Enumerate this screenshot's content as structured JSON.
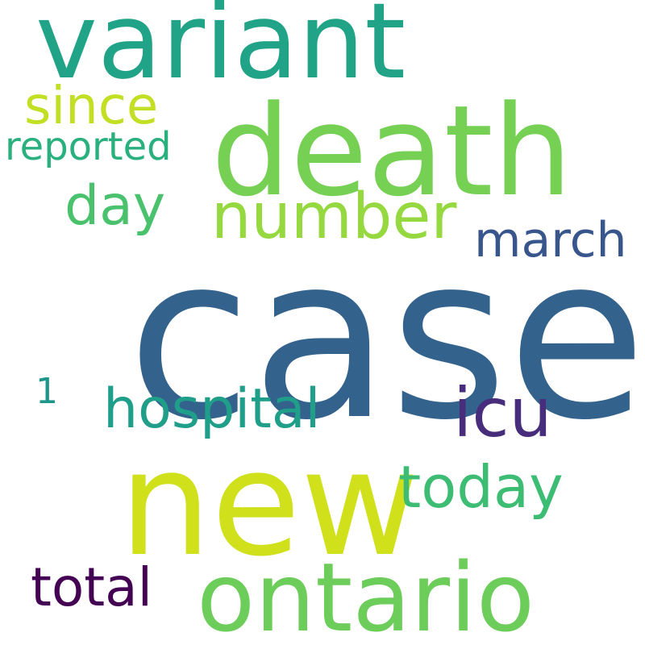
{
  "words": {
    "case": {
      "text": "case",
      "color": "#33638d"
    },
    "new": {
      "text": "new",
      "color": "#d0e11c"
    },
    "death": {
      "text": "death",
      "color": "#75d054"
    },
    "variant": {
      "text": "variant",
      "color": "#20a386"
    },
    "ontario": {
      "text": "ontario",
      "color": "#6ccd5a"
    },
    "number": {
      "text": "number",
      "color": "#95d840"
    },
    "icu": {
      "text": "icu",
      "color": "#472d7b"
    },
    "hospital": {
      "text": "hospital",
      "color": "#1f9e89"
    },
    "today": {
      "text": "today",
      "color": "#3dbc74"
    },
    "since": {
      "text": "since",
      "color": "#c2df23"
    },
    "day": {
      "text": "day",
      "color": "#4ac16d"
    },
    "march": {
      "text": "march",
      "color": "#39568c"
    },
    "total": {
      "text": "total",
      "color": "#440154"
    },
    "reported": {
      "text": "reported",
      "color": "#2ab07f"
    },
    "one": {
      "text": "1",
      "color": "#1f968b"
    }
  }
}
